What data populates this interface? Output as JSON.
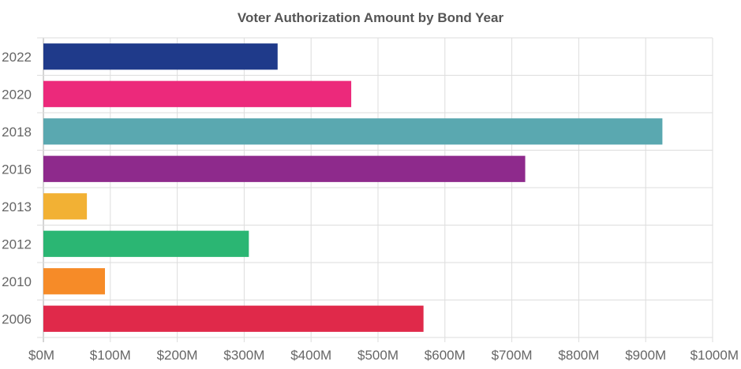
{
  "chart_data": {
    "type": "bar",
    "orientation": "horizontal",
    "title": "Voter Authorization Amount by Bond Year",
    "xlabel": "",
    "ylabel": "",
    "categories": [
      "2022",
      "2020",
      "2018",
      "2016",
      "2013",
      "2012",
      "2010",
      "2006"
    ],
    "values": [
      350,
      460,
      925,
      720,
      65,
      307,
      92,
      568
    ],
    "value_unit": "million USD",
    "colors": [
      "#1f3a8a",
      "#ec297b",
      "#5aa8b0",
      "#8e2a8c",
      "#f2b134",
      "#2bb673",
      "#f68b28",
      "#e0294a"
    ],
    "xlim": [
      0,
      1000
    ],
    "x_ticks": [
      0,
      100,
      200,
      300,
      400,
      500,
      600,
      700,
      800,
      900,
      1000
    ],
    "x_tick_labels": [
      "$0M",
      "$100M",
      "$200M",
      "$300M",
      "$400M",
      "$500M",
      "$600M",
      "$700M",
      "$800M",
      "$900M",
      "$1000M"
    ],
    "grid": true,
    "legend": "none"
  }
}
